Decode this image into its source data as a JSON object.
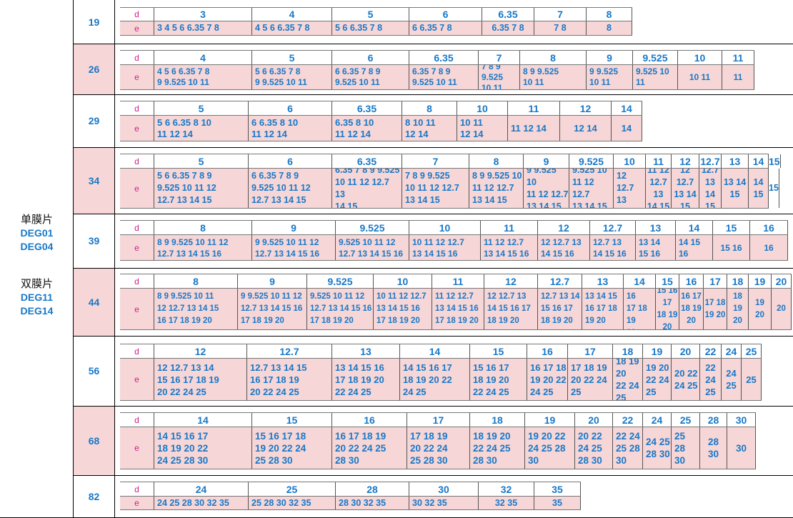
{
  "model_groups": [
    {
      "title": "单膜片",
      "codes": [
        "DEG01",
        "DEG04"
      ]
    },
    {
      "title": "双膜片",
      "codes": [
        "DEG11",
        "DEG14"
      ]
    }
  ],
  "colors": {
    "accent_blue": "#1878c8",
    "label_magenta": "#d0208c",
    "pink_fill": "#f6d6d6"
  },
  "row_labels": {
    "d": "d",
    "e": "e"
  },
  "bands": [
    {
      "size": "19",
      "d": [
        "3",
        "4",
        "5",
        "6",
        "6.35",
        "7",
        "8"
      ],
      "e": [
        "3 4 5 6 6.35 7 8",
        "4 5 6 6.35 7 8",
        "5 6 6.35 7 8",
        "6 6.35 7 8",
        "6.35 7 8",
        "7 8",
        "8"
      ]
    },
    {
      "size": "26",
      "d": [
        "4",
        "5",
        "6",
        "6.35",
        "7",
        "8",
        "9",
        "9.525",
        "10",
        "11"
      ],
      "e": [
        "4 5 6 6.35 7 8\n9 9.525 10 11",
        "5 6 6.35 7 8\n9 9.525 10 11",
        "6 6.35 7 8 9\n9.525 10 11",
        "6.35 7 8 9\n9.525 10 11",
        "7 8 9 9.525\n10 11",
        "8 9 9.525\n10 11",
        "9 9.525\n10 11",
        "9.525 10\n11",
        "10 11",
        "11"
      ]
    },
    {
      "size": "29",
      "d": [
        "5",
        "6",
        "6.35",
        "8",
        "10",
        "11",
        "12",
        "14"
      ],
      "e": [
        "5 6 6.35 8 10\n11 12 14",
        "6 6.35 8 10\n11 12 14",
        "6.35 8 10\n11 12 14",
        "8 10 11\n12 14",
        "10 11\n12 14",
        "11 12 14",
        "12 14",
        "14"
      ]
    },
    {
      "size": "34",
      "d": [
        "5",
        "6",
        "6.35",
        "7",
        "8",
        "9",
        "9.525",
        "10",
        "11",
        "12",
        "12.7",
        "13",
        "14",
        "15"
      ],
      "e": [
        "5 6 6.35 7 8 9\n9.525 10 11 12\n12.7 13 14 15",
        "6 6.35 7 8 9\n9.525 10 11 12\n12.7 13 14 15",
        "6.35 7 8 9 9.525\n10 11 12 12.7 13\n14 15",
        "7 8 9 9.525\n10 11 12 12.7\n13 14 15",
        "8 9 9.525 10\n11 12 12.7\n13 14 15",
        "9 9.525 10\n11 12 12.7\n13 14 15",
        "9.525 10\n11 12 12.7\n13 14 15",
        "10 11 12\n12.7 13\n14 15",
        "11 12\n12.7 13\n14 15",
        "12 12.7\n13 14\n15",
        "12.7 13\n14 15",
        "13 14\n15",
        "14\n15",
        "15"
      ]
    },
    {
      "size": "39",
      "d": [
        "8",
        "9",
        "9.525",
        "10",
        "11",
        "12",
        "12.7",
        "13",
        "14",
        "15",
        "16"
      ],
      "e": [
        "8 9 9.525 10 11 12\n12.7 13 14 15 16",
        "9 9.525 10 11 12\n12.7 13 14 15 16",
        "9.525 10 11 12\n12.7 13 14 15 16",
        "10 11 12 12.7\n13 14 15 16",
        "11 12 12.7\n13 14 15 16",
        "12 12.7 13\n14 15 16",
        "12.7 13\n14 15 16",
        "13 14\n15 16",
        "14 15\n16",
        "15 16",
        "16"
      ]
    },
    {
      "size": "44",
      "d": [
        "8",
        "9",
        "9.525",
        "10",
        "11",
        "12",
        "12.7",
        "13",
        "14",
        "15",
        "16",
        "17",
        "18",
        "19",
        "20"
      ],
      "e": [
        "8 9 9.525 10 11\n12 12.7 13 14 15\n16 17 18 19 20",
        "9 9.525 10 11 12\n12.7 13 14 15 16\n17 18 19 20",
        "9.525 10 11 12\n12.7 13 14 15 16\n17 18 19 20",
        "10 11 12 12.7\n13 14 15 16\n17 18 19 20",
        "11 12 12.7\n13 14 15 16\n17 18 19 20",
        "12 12.7 13\n14 15 16 17\n18 19 20",
        "12.7 13 14\n15 16 17\n18 19 20",
        "13 14 15\n16 17 18\n19 20",
        "14 15 16\n17 18 19\n20",
        "15 16 17\n18 19\n20",
        "16 17\n18 19\n20",
        "17 18\n19 20",
        "18\n19\n20",
        "19\n20",
        "20"
      ]
    },
    {
      "size": "56",
      "d": [
        "12",
        "12.7",
        "13",
        "14",
        "15",
        "16",
        "17",
        "18",
        "19",
        "20",
        "22",
        "24",
        "25"
      ],
      "e": [
        "12 12.7 13 14\n15 16 17 18 19\n20 22 24 25",
        "12.7 13 14 15\n16 17 18 19\n20 22 24 25",
        "13 14 15 16\n17 18 19 20\n22 24 25",
        "14 15 16 17\n18 19 20 22\n24 25",
        "15 16 17\n18 19 20\n22 24 25",
        "16 17 18\n19 20 22\n24 25",
        "17 18 19\n20 22 24\n25",
        "18 19 20\n22 24\n25",
        "19 20\n22 24\n25",
        "20 22\n24 25",
        "22\n24\n25",
        "24\n25",
        "25"
      ]
    },
    {
      "size": "68",
      "d": [
        "14",
        "15",
        "16",
        "17",
        "18",
        "19",
        "20",
        "22",
        "24",
        "25",
        "28",
        "30"
      ],
      "e": [
        "14 15 16 17\n18 19 20 22\n24 25 28 30",
        "15 16 17 18\n19 20 22 24\n25 28 30",
        "16 17 18 19\n20 22 24 25\n28 30",
        "17 18 19\n20 22 24\n25 28 30",
        "18 19 20\n22 24 25\n28 30",
        "19 20 22\n24 25 28\n30",
        "20 22\n24 25\n28 30",
        "22 24\n25 28\n30",
        "24 25\n28 30",
        "25\n28\n30",
        "28\n30",
        "30"
      ]
    },
    {
      "size": "82",
      "d": [
        "24",
        "25",
        "28",
        "30",
        "32",
        "35"
      ],
      "e": [
        "24 25 28 30 32 35",
        "25 28 30 32 35",
        "28 30 32 35",
        "30 32 35",
        "32 35",
        "35"
      ]
    }
  ]
}
